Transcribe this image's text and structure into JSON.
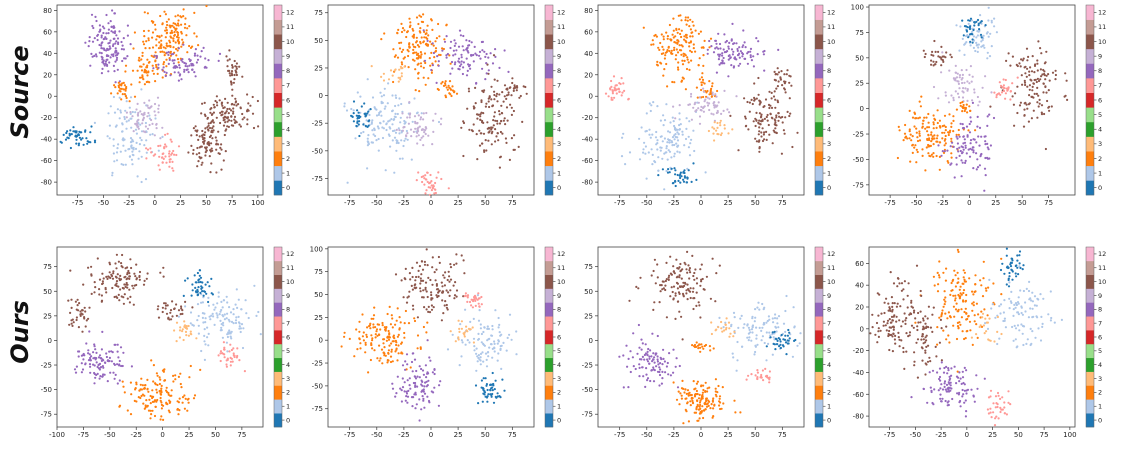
{
  "row_labels": [
    "Source",
    "Ours"
  ],
  "palette": [
    "#1f77b4",
    "#aec7e8",
    "#ff7f0e",
    "#ffbb78",
    "#2ca02c",
    "#98df8a",
    "#d62728",
    "#ff9896",
    "#9467bd",
    "#c5b0d5",
    "#8c564b",
    "#c49c94",
    "#f7b6d2"
  ],
  "chart_data": [
    {
      "type": "scatter",
      "row": "Source",
      "col": 1,
      "xticks": [
        -75,
        -50,
        -25,
        0,
        25,
        50,
        75,
        100
      ],
      "yticks": [
        -80,
        -60,
        -40,
        -20,
        0,
        20,
        40,
        60,
        80
      ],
      "xlim": [
        -95,
        105
      ],
      "ylim": [
        -92,
        85
      ],
      "colorbar_ticks": [
        "0",
        "1",
        "2",
        "3",
        "4",
        "5",
        "6",
        "7",
        "8",
        "9",
        "10",
        "11",
        "12"
      ],
      "clusters": [
        {
          "c": 8,
          "x": -47,
          "y": 48,
          "sx": 9,
          "sy": 14,
          "n": 140
        },
        {
          "c": 2,
          "x": 15,
          "y": 55,
          "sx": 13,
          "sy": 12,
          "n": 150
        },
        {
          "c": 2,
          "x": -5,
          "y": 28,
          "sx": 10,
          "sy": 8,
          "n": 60
        },
        {
          "c": 8,
          "x": 25,
          "y": 30,
          "sx": 15,
          "sy": 7,
          "n": 80
        },
        {
          "c": 10,
          "x": 70,
          "y": -15,
          "sx": 12,
          "sy": 8,
          "n": 110
        },
        {
          "c": 10,
          "x": 50,
          "y": -45,
          "sx": 9,
          "sy": 12,
          "n": 90
        },
        {
          "c": 10,
          "x": 75,
          "y": 25,
          "sx": 4,
          "sy": 8,
          "n": 35
        },
        {
          "c": 1,
          "x": -25,
          "y": -38,
          "sx": 12,
          "sy": 18,
          "n": 110
        },
        {
          "c": 0,
          "x": -75,
          "y": -38,
          "sx": 7,
          "sy": 5,
          "n": 50
        },
        {
          "c": 7,
          "x": 10,
          "y": -55,
          "sx": 8,
          "sy": 8,
          "n": 45
        },
        {
          "c": 2,
          "x": -30,
          "y": 5,
          "sx": 6,
          "sy": 5,
          "n": 30
        },
        {
          "c": 9,
          "x": -10,
          "y": -20,
          "sx": 10,
          "sy": 8,
          "n": 60
        }
      ]
    },
    {
      "type": "scatter",
      "row": "Source",
      "col": 2,
      "xticks": [
        -75,
        -50,
        -25,
        0,
        25,
        50,
        75
      ],
      "yticks": [
        -75,
        -50,
        -25,
        0,
        25,
        50,
        75
      ],
      "xlim": [
        -95,
        95
      ],
      "ylim": [
        -90,
        82
      ],
      "colorbar_ticks": [
        "0",
        "1",
        "2",
        "3",
        "4",
        "5",
        "6",
        "7",
        "8",
        "9",
        "10",
        "11",
        "12"
      ],
      "clusters": [
        {
          "c": 2,
          "x": -10,
          "y": 45,
          "sx": 12,
          "sy": 15,
          "n": 150
        },
        {
          "c": 8,
          "x": 30,
          "y": 35,
          "sx": 15,
          "sy": 10,
          "n": 100
        },
        {
          "c": 10,
          "x": 55,
          "y": -20,
          "sx": 12,
          "sy": 20,
          "n": 130
        },
        {
          "c": 10,
          "x": 75,
          "y": 5,
          "sx": 5,
          "sy": 5,
          "n": 30
        },
        {
          "c": 1,
          "x": -40,
          "y": -25,
          "sx": 15,
          "sy": 15,
          "n": 140
        },
        {
          "c": 0,
          "x": -65,
          "y": -20,
          "sx": 5,
          "sy": 6,
          "n": 40
        },
        {
          "c": 7,
          "x": 0,
          "y": -80,
          "sx": 5,
          "sy": 6,
          "n": 40
        },
        {
          "c": 2,
          "x": 15,
          "y": 5,
          "sx": 5,
          "sy": 4,
          "n": 25
        },
        {
          "c": 9,
          "x": -10,
          "y": -30,
          "sx": 10,
          "sy": 8,
          "n": 60
        },
        {
          "c": 3,
          "x": -35,
          "y": 20,
          "sx": 6,
          "sy": 4,
          "n": 20
        }
      ]
    },
    {
      "type": "scatter",
      "row": "Source",
      "col": 3,
      "xticks": [
        -75,
        -50,
        -25,
        0,
        25,
        50,
        75
      ],
      "yticks": [
        -80,
        -60,
        -40,
        -20,
        0,
        20,
        40,
        60,
        80
      ],
      "xlim": [
        -95,
        95
      ],
      "ylim": [
        -92,
        85
      ],
      "colorbar_ticks": [
        "0",
        "1",
        "2",
        "3",
        "4",
        "5",
        "6",
        "7",
        "8",
        "9",
        "10",
        "11",
        "12"
      ],
      "clusters": [
        {
          "c": 2,
          "x": -20,
          "y": 45,
          "sx": 12,
          "sy": 15,
          "n": 150
        },
        {
          "c": 8,
          "x": 30,
          "y": 40,
          "sx": 15,
          "sy": 10,
          "n": 100
        },
        {
          "c": 10,
          "x": 60,
          "y": -20,
          "sx": 12,
          "sy": 15,
          "n": 120
        },
        {
          "c": 10,
          "x": 75,
          "y": 15,
          "sx": 5,
          "sy": 6,
          "n": 30
        },
        {
          "c": 1,
          "x": -30,
          "y": -40,
          "sx": 15,
          "sy": 15,
          "n": 130
        },
        {
          "c": 0,
          "x": -20,
          "y": -75,
          "sx": 8,
          "sy": 5,
          "n": 40
        },
        {
          "c": 7,
          "x": -78,
          "y": 5,
          "sx": 5,
          "sy": 6,
          "n": 35
        },
        {
          "c": 2,
          "x": 5,
          "y": 5,
          "sx": 5,
          "sy": 5,
          "n": 30
        },
        {
          "c": 9,
          "x": 5,
          "y": -10,
          "sx": 10,
          "sy": 8,
          "n": 60
        },
        {
          "c": 3,
          "x": 15,
          "y": -30,
          "sx": 6,
          "sy": 5,
          "n": 20
        }
      ]
    },
    {
      "type": "scatter",
      "row": "Source",
      "col": 4,
      "xticks": [
        -75,
        -50,
        -25,
        0,
        25,
        50,
        75
      ],
      "yticks": [
        -75,
        -50,
        -25,
        0,
        25,
        50,
        75,
        100
      ],
      "xlim": [
        -95,
        100
      ],
      "ylim": [
        -85,
        102
      ],
      "colorbar_ticks": [
        "0",
        "1",
        "2",
        "3",
        "4",
        "5",
        "6",
        "7",
        "8",
        "9",
        "10",
        "11",
        "12"
      ],
      "clusters": [
        {
          "c": 2,
          "x": -35,
          "y": -25,
          "sx": 15,
          "sy": 15,
          "n": 150
        },
        {
          "c": 8,
          "x": 0,
          "y": -35,
          "sx": 12,
          "sy": 15,
          "n": 100
        },
        {
          "c": 10,
          "x": 60,
          "y": 20,
          "sx": 12,
          "sy": 20,
          "n": 130
        },
        {
          "c": 1,
          "x": 10,
          "y": 70,
          "sx": 10,
          "sy": 10,
          "n": 70
        },
        {
          "c": 0,
          "x": 5,
          "y": 80,
          "sx": 5,
          "sy": 6,
          "n": 35
        },
        {
          "c": 7,
          "x": 35,
          "y": 20,
          "sx": 6,
          "sy": 5,
          "n": 30
        },
        {
          "c": 9,
          "x": -10,
          "y": 20,
          "sx": 10,
          "sy": 12,
          "n": 60
        },
        {
          "c": 10,
          "x": -30,
          "y": 50,
          "sx": 6,
          "sy": 5,
          "n": 30
        },
        {
          "c": 2,
          "x": -5,
          "y": 0,
          "sx": 4,
          "sy": 3,
          "n": 20
        }
      ]
    },
    {
      "type": "scatter",
      "row": "Ours",
      "col": 1,
      "xticks": [
        -100,
        -75,
        -50,
        -25,
        0,
        25,
        50,
        75
      ],
      "yticks": [
        -75,
        -50,
        -25,
        0,
        25,
        50,
        75
      ],
      "xlim": [
        -100,
        95
      ],
      "ylim": [
        -88,
        95
      ],
      "colorbar_ticks": [
        "0",
        "1",
        "2",
        "3",
        "4",
        "5",
        "6",
        "7",
        "8",
        "9",
        "10",
        "11",
        "12"
      ],
      "clusters": [
        {
          "c": 10,
          "x": -40,
          "y": 60,
          "sx": 15,
          "sy": 12,
          "n": 120
        },
        {
          "c": 10,
          "x": -80,
          "y": 25,
          "sx": 5,
          "sy": 8,
          "n": 35
        },
        {
          "c": 8,
          "x": -60,
          "y": -20,
          "sx": 12,
          "sy": 10,
          "n": 110
        },
        {
          "c": 2,
          "x": -5,
          "y": -55,
          "sx": 15,
          "sy": 12,
          "n": 150
        },
        {
          "c": 1,
          "x": 55,
          "y": 20,
          "sx": 15,
          "sy": 15,
          "n": 120
        },
        {
          "c": 0,
          "x": 35,
          "y": 55,
          "sx": 6,
          "sy": 8,
          "n": 45
        },
        {
          "c": 7,
          "x": 60,
          "y": -15,
          "sx": 6,
          "sy": 6,
          "n": 35
        },
        {
          "c": 10,
          "x": 10,
          "y": 30,
          "sx": 8,
          "sy": 5,
          "n": 30
        },
        {
          "c": 3,
          "x": 20,
          "y": 10,
          "sx": 6,
          "sy": 5,
          "n": 25
        }
      ]
    },
    {
      "type": "scatter",
      "row": "Ours",
      "col": 2,
      "xticks": [
        -75,
        -50,
        -25,
        0,
        25,
        50,
        75
      ],
      "yticks": [
        -75,
        -50,
        -25,
        0,
        25,
        50,
        75,
        100
      ],
      "xlim": [
        -95,
        95
      ],
      "ylim": [
        -95,
        102
      ],
      "colorbar_ticks": [
        "0",
        "1",
        "2",
        "3",
        "4",
        "5",
        "6",
        "7",
        "8",
        "9",
        "10",
        "11",
        "12"
      ],
      "clusters": [
        {
          "c": 2,
          "x": -45,
          "y": 0,
          "sx": 15,
          "sy": 15,
          "n": 150
        },
        {
          "c": 8,
          "x": -15,
          "y": -50,
          "sx": 10,
          "sy": 15,
          "n": 100
        },
        {
          "c": 10,
          "x": 0,
          "y": 60,
          "sx": 15,
          "sy": 15,
          "n": 130
        },
        {
          "c": 1,
          "x": 50,
          "y": 0,
          "sx": 12,
          "sy": 15,
          "n": 100
        },
        {
          "c": 0,
          "x": 55,
          "y": -55,
          "sx": 8,
          "sy": 8,
          "n": 50
        },
        {
          "c": 7,
          "x": 40,
          "y": 45,
          "sx": 6,
          "sy": 4,
          "n": 30
        },
        {
          "c": 3,
          "x": 30,
          "y": 10,
          "sx": 6,
          "sy": 5,
          "n": 20
        }
      ]
    },
    {
      "type": "scatter",
      "row": "Ours",
      "col": 3,
      "xticks": [
        -75,
        -50,
        -25,
        0,
        25,
        50,
        75
      ],
      "yticks": [
        -75,
        -50,
        -25,
        0,
        25,
        50,
        75
      ],
      "xlim": [
        -95,
        95
      ],
      "ylim": [
        -88,
        95
      ],
      "colorbar_ticks": [
        "0",
        "1",
        "2",
        "3",
        "4",
        "5",
        "6",
        "7",
        "8",
        "9",
        "10",
        "11",
        "12"
      ],
      "clusters": [
        {
          "c": 10,
          "x": -20,
          "y": 55,
          "sx": 15,
          "sy": 15,
          "n": 130
        },
        {
          "c": 8,
          "x": -50,
          "y": -25,
          "sx": 12,
          "sy": 12,
          "n": 100
        },
        {
          "c": 2,
          "x": 0,
          "y": -60,
          "sx": 12,
          "sy": 10,
          "n": 140
        },
        {
          "c": 1,
          "x": 55,
          "y": 10,
          "sx": 15,
          "sy": 12,
          "n": 110
        },
        {
          "c": 0,
          "x": 75,
          "y": 0,
          "sx": 6,
          "sy": 5,
          "n": 35
        },
        {
          "c": 7,
          "x": 55,
          "y": -35,
          "sx": 6,
          "sy": 4,
          "n": 25
        },
        {
          "c": 2,
          "x": 0,
          "y": -5,
          "sx": 4,
          "sy": 4,
          "n": 20
        },
        {
          "c": 3,
          "x": 20,
          "y": 15,
          "sx": 6,
          "sy": 5,
          "n": 20
        }
      ]
    },
    {
      "type": "scatter",
      "row": "Ours",
      "col": 4,
      "xticks": [
        -75,
        -50,
        -25,
        0,
        25,
        50,
        75,
        100
      ],
      "yticks": [
        -80,
        -60,
        -40,
        -20,
        0,
        20,
        40,
        60
      ],
      "xlim": [
        -95,
        105
      ],
      "ylim": [
        -90,
        75
      ],
      "colorbar_ticks": [
        "0",
        "1",
        "2",
        "3",
        "4",
        "5",
        "6",
        "7",
        "8",
        "9",
        "10",
        "11",
        "12"
      ],
      "clusters": [
        {
          "c": 2,
          "x": -5,
          "y": 25,
          "sx": 15,
          "sy": 20,
          "n": 150
        },
        {
          "c": 8,
          "x": -15,
          "y": -55,
          "sx": 10,
          "sy": 12,
          "n": 100
        },
        {
          "c": 10,
          "x": -70,
          "y": 10,
          "sx": 12,
          "sy": 18,
          "n": 120
        },
        {
          "c": 10,
          "x": -40,
          "y": -10,
          "sx": 8,
          "sy": 15,
          "n": 60
        },
        {
          "c": 1,
          "x": 55,
          "y": 10,
          "sx": 15,
          "sy": 15,
          "n": 100
        },
        {
          "c": 0,
          "x": 45,
          "y": 55,
          "sx": 6,
          "sy": 8,
          "n": 40
        },
        {
          "c": 7,
          "x": 30,
          "y": -70,
          "sx": 5,
          "sy": 8,
          "n": 35
        },
        {
          "c": 3,
          "x": 20,
          "y": 0,
          "sx": 6,
          "sy": 6,
          "n": 20
        }
      ]
    }
  ]
}
